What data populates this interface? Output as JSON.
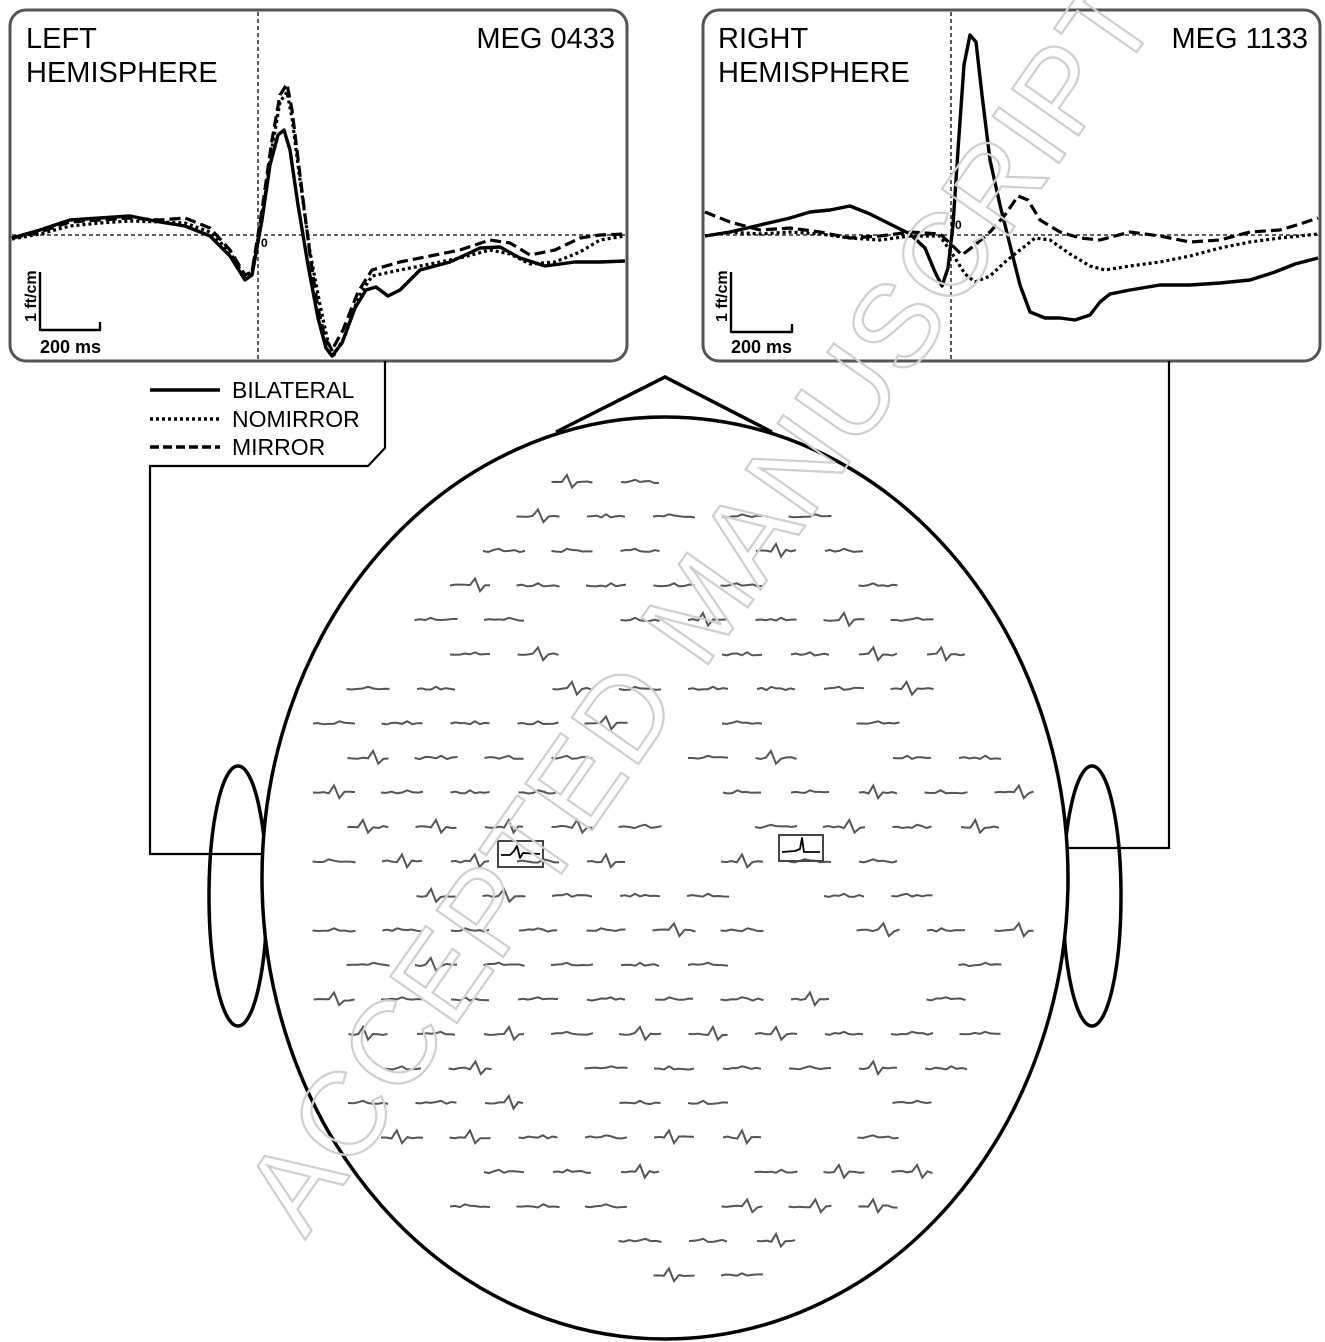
{
  "left_panel": {
    "title_line1": "LEFT",
    "title_line2": "HEMISPHERE",
    "channel": "MEG  0433",
    "zero_label": "0",
    "scale_amplitude": "1 ft/cm",
    "scale_time": "200 ms"
  },
  "right_panel": {
    "title_line1": "RIGHT",
    "title_line2": "HEMISPHERE",
    "channel": "MEG  1133",
    "zero_label": "0",
    "scale_amplitude": "1 ft/cm",
    "scale_time": "200 ms"
  },
  "legend": {
    "items": [
      {
        "label": "BILATERAL",
        "style": "solid"
      },
      {
        "label": "NOMIRROR",
        "style": "dotted"
      },
      {
        "label": "MIRROR",
        "style": "dashed"
      }
    ]
  },
  "watermark": "ACCEPTED MANUSCRIPT"
}
